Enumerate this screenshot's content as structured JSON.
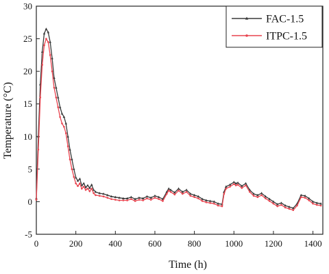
{
  "chart_data": {
    "type": "line",
    "xlabel": "Time (h)",
    "ylabel": "Temperature (°C)",
    "xlim": [
      0,
      1450
    ],
    "ylim": [
      -5,
      30
    ],
    "xticks": [
      0,
      200,
      400,
      600,
      800,
      1000,
      1200,
      1400
    ],
    "yticks": [
      -5,
      0,
      5,
      10,
      15,
      20,
      25,
      30
    ],
    "legend_position": "top-right",
    "series": [
      {
        "name": "FAC-1.5",
        "color": "#3a3a3a",
        "marker": "triangle",
        "x": [
          0,
          10,
          20,
          30,
          40,
          50,
          60,
          70,
          80,
          90,
          100,
          110,
          120,
          130,
          140,
          150,
          160,
          170,
          180,
          190,
          200,
          210,
          220,
          230,
          240,
          250,
          260,
          270,
          280,
          290,
          300,
          320,
          340,
          360,
          380,
          400,
          420,
          440,
          460,
          480,
          500,
          520,
          540,
          560,
          580,
          600,
          620,
          640,
          660,
          670,
          680,
          700,
          720,
          740,
          760,
          780,
          800,
          820,
          840,
          860,
          880,
          900,
          920,
          940,
          950,
          960,
          980,
          1000,
          1010,
          1020,
          1040,
          1060,
          1080,
          1100,
          1120,
          1140,
          1160,
          1180,
          1200,
          1220,
          1240,
          1260,
          1280,
          1300,
          1320,
          1340,
          1360,
          1380,
          1400,
          1420,
          1440
        ],
        "y": [
          0.5,
          10,
          18,
          23,
          25.8,
          26.5,
          26,
          24.5,
          22,
          19,
          17.5,
          16,
          14.5,
          13.5,
          13,
          12,
          10,
          8,
          6.5,
          5,
          3.7,
          3.2,
          3.5,
          2.5,
          2.8,
          2.2,
          2.5,
          2.1,
          2.6,
          1.8,
          1.5,
          1.3,
          1.2,
          1.0,
          0.8,
          0.7,
          0.6,
          0.5,
          0.5,
          0.7,
          0.4,
          0.6,
          0.5,
          0.8,
          0.6,
          0.9,
          0.7,
          0.4,
          1.5,
          2.0,
          1.8,
          1.4,
          2.0,
          1.5,
          1.8,
          1.2,
          1.0,
          0.8,
          0.4,
          0.2,
          0.1,
          0.0,
          -0.3,
          -0.4,
          1.5,
          2.3,
          2.6,
          3.0,
          2.8,
          2.9,
          2.4,
          2.8,
          1.8,
          1.2,
          1.0,
          1.3,
          0.8,
          0.4,
          0.0,
          -0.4,
          -0.2,
          -0.6,
          -0.8,
          -1.0,
          -0.3,
          1.0,
          0.9,
          0.5,
          0.0,
          -0.2,
          -0.3
        ]
      },
      {
        "name": "ITPC-1.5",
        "color": "#e8434e",
        "marker": "dot",
        "x": [
          0,
          10,
          20,
          30,
          40,
          50,
          60,
          70,
          80,
          90,
          100,
          110,
          120,
          130,
          140,
          150,
          160,
          170,
          180,
          190,
          200,
          210,
          220,
          230,
          240,
          250,
          260,
          270,
          280,
          290,
          300,
          320,
          340,
          360,
          380,
          400,
          420,
          440,
          460,
          480,
          500,
          520,
          540,
          560,
          580,
          600,
          620,
          640,
          660,
          670,
          680,
          700,
          720,
          740,
          760,
          780,
          800,
          820,
          840,
          860,
          880,
          900,
          920,
          940,
          950,
          960,
          980,
          1000,
          1010,
          1020,
          1040,
          1060,
          1080,
          1100,
          1120,
          1140,
          1160,
          1180,
          1200,
          1220,
          1240,
          1260,
          1280,
          1300,
          1320,
          1340,
          1360,
          1380,
          1400,
          1420,
          1440
        ],
        "y": [
          0.3,
          8,
          16,
          21,
          24,
          25,
          24.5,
          22.5,
          20,
          17.5,
          16,
          14.5,
          13,
          12,
          11.5,
          10.5,
          8.5,
          6.5,
          5,
          3.8,
          2.8,
          2.4,
          2.8,
          2.0,
          2.3,
          1.8,
          2.0,
          1.6,
          2.0,
          1.3,
          1.0,
          0.9,
          0.8,
          0.6,
          0.4,
          0.3,
          0.2,
          0.2,
          0.2,
          0.4,
          0.1,
          0.3,
          0.2,
          0.5,
          0.3,
          0.6,
          0.4,
          0.1,
          1.2,
          1.7,
          1.5,
          1.1,
          1.7,
          1.2,
          1.5,
          0.9,
          0.7,
          0.5,
          0.1,
          -0.1,
          -0.2,
          -0.3,
          -0.6,
          -0.7,
          1.2,
          2.0,
          2.3,
          2.7,
          2.5,
          2.6,
          2.1,
          2.5,
          1.5,
          0.9,
          0.7,
          1.0,
          0.5,
          0.1,
          -0.3,
          -0.7,
          -0.5,
          -0.9,
          -1.1,
          -1.3,
          -0.6,
          0.7,
          0.6,
          0.2,
          -0.3,
          -0.5,
          -0.6
        ]
      }
    ]
  }
}
